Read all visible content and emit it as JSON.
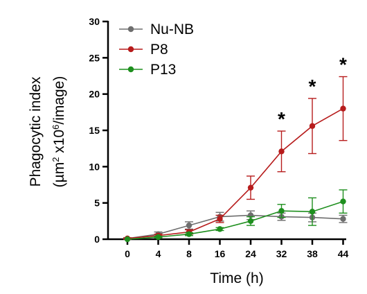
{
  "chart_data": {
    "type": "line",
    "x": [
      0,
      4,
      8,
      16,
      24,
      32,
      38,
      44
    ],
    "x_tick_labels": [
      "0",
      "4",
      "8",
      "16",
      "24",
      "32",
      "38",
      "44"
    ],
    "xlabel": "Time (h)",
    "ylabel_line1": "Phagocytic index",
    "ylabel_line2_prefix": "(µm",
    "ylabel_sup1": "2",
    "ylabel_line2_mid": " x10",
    "ylabel_sup2": "6",
    "ylabel_line2_suffix": "/image)",
    "ylim": [
      0,
      30
    ],
    "y_ticks": [
      0,
      5,
      10,
      15,
      20,
      25,
      30
    ],
    "y_tick_labels": [
      "0",
      "5",
      "10",
      "15",
      "20",
      "25",
      "30"
    ],
    "grid": false,
    "legend_position": "top-left",
    "series": [
      {
        "name": "Nu-NB",
        "color": "#6e6e6e",
        "values": [
          0.1,
          0.7,
          1.9,
          3.1,
          3.3,
          3.1,
          3.0,
          2.8
        ],
        "errors": [
          0.1,
          0.3,
          0.5,
          0.6,
          0.6,
          0.5,
          0.6,
          0.5
        ]
      },
      {
        "name": "P8",
        "color": "#b71c1c",
        "values": [
          0.1,
          0.5,
          1.0,
          2.8,
          7.1,
          12.1,
          15.6,
          18.0
        ],
        "errors": [
          0.1,
          0.2,
          0.3,
          0.5,
          1.6,
          2.8,
          3.8,
          4.4
        ]
      },
      {
        "name": "P13",
        "color": "#1e8f1e",
        "values": [
          0.0,
          0.3,
          0.7,
          1.4,
          2.5,
          3.9,
          3.8,
          5.2
        ],
        "errors": [
          0.0,
          0.1,
          0.2,
          0.2,
          0.6,
          0.9,
          1.9,
          1.6
        ]
      }
    ],
    "annotations": [
      {
        "text": "*",
        "x": 32,
        "y": 17.0
      },
      {
        "text": "*",
        "x": 38,
        "y": 21.5
      },
      {
        "text": "*",
        "x": 44,
        "y": 24.5
      }
    ]
  }
}
